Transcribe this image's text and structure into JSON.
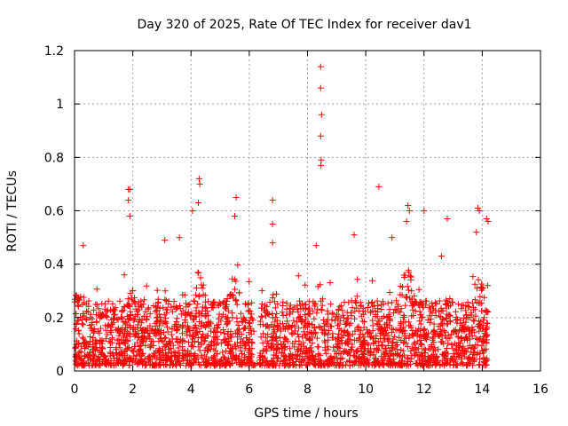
{
  "chart_data": {
    "type": "scatter",
    "title": "Day 320 of 2025, Rate Of TEC Index for receiver dav1",
    "xlabel": "GPS time / hours",
    "ylabel": "ROTI / TECUs",
    "xlim": [
      0,
      16
    ],
    "ylim": [
      0,
      1.2
    ],
    "xticks": [
      0,
      2,
      4,
      6,
      8,
      10,
      12,
      14,
      16
    ],
    "xtick_labels": [
      "0",
      "2",
      "4",
      "6",
      "8",
      "10",
      "12",
      "14",
      "16"
    ],
    "yticks": [
      0,
      0.2,
      0.4,
      0.6,
      0.8,
      1.0,
      1.2
    ],
    "ytick_labels": [
      "0",
      "0.2",
      "0.4",
      "0.6",
      "0.8",
      "1",
      "1.2"
    ],
    "grid": true,
    "marker": "+",
    "color": "#ff0000",
    "series": [
      {
        "name": "ROTI",
        "data_range_hours": [
          0,
          14.2
        ],
        "typical_band": [
          0.02,
          0.35
        ],
        "points": [
          [
            8.45,
            1.14
          ],
          [
            8.45,
            1.06
          ],
          [
            8.48,
            0.96
          ],
          [
            8.45,
            0.88
          ],
          [
            8.47,
            0.79
          ],
          [
            8.46,
            0.77
          ],
          [
            1.85,
            0.68
          ],
          [
            1.9,
            0.68
          ],
          [
            1.85,
            0.64
          ],
          [
            1.9,
            0.58
          ],
          [
            4.28,
            0.72
          ],
          [
            4.3,
            0.7
          ],
          [
            4.25,
            0.63
          ],
          [
            4.05,
            0.6
          ],
          [
            5.55,
            0.65
          ],
          [
            5.5,
            0.58
          ],
          [
            6.8,
            0.64
          ],
          [
            6.8,
            0.55
          ],
          [
            6.8,
            0.48
          ],
          [
            10.45,
            0.69
          ],
          [
            11.45,
            0.62
          ],
          [
            11.5,
            0.6
          ],
          [
            11.4,
            0.56
          ],
          [
            12.0,
            0.6
          ],
          [
            12.8,
            0.57
          ],
          [
            13.85,
            0.61
          ],
          [
            13.9,
            0.6
          ],
          [
            13.8,
            0.52
          ],
          [
            14.15,
            0.57
          ],
          [
            14.2,
            0.56
          ],
          [
            0.3,
            0.47
          ],
          [
            3.1,
            0.49
          ],
          [
            3.6,
            0.5
          ],
          [
            9.6,
            0.51
          ],
          [
            10.9,
            0.5
          ],
          [
            12.6,
            0.43
          ],
          [
            8.3,
            0.47
          ]
        ]
      }
    ]
  }
}
